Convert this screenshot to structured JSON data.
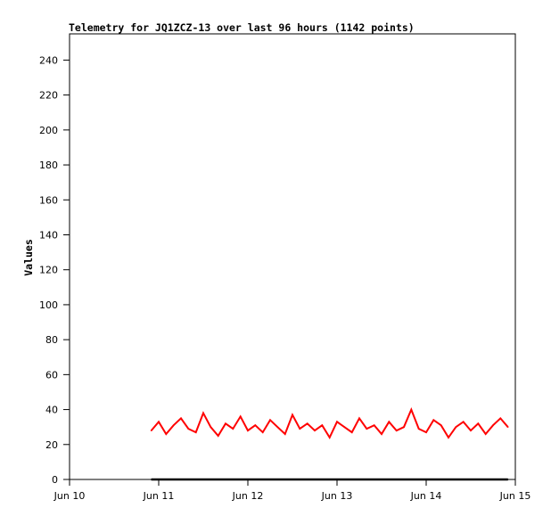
{
  "chart_data": {
    "type": "line",
    "title": "Telemetry for JQ1ZCZ-13 over last 96 hours (1142 points)",
    "xlabel": "",
    "ylabel": "Values",
    "xlim": [
      "Jun 10",
      "Jun 15"
    ],
    "ylim": [
      0,
      255
    ],
    "x_ticks": [
      "Jun 10",
      "Jun 11",
      "Jun 12",
      "Jun 13",
      "Jun 14",
      "Jun 15"
    ],
    "y_ticks": [
      0,
      20,
      40,
      60,
      80,
      100,
      120,
      140,
      160,
      180,
      200,
      220,
      240
    ],
    "grid": false,
    "series": [
      {
        "color": "#ff0000",
        "x": [
          "Jun 10 22:00",
          "Jun 11 00:00",
          "Jun 11 02:00",
          "Jun 11 04:00",
          "Jun 11 06:00",
          "Jun 11 08:00",
          "Jun 11 10:00",
          "Jun 11 12:00",
          "Jun 11 14:00",
          "Jun 11 16:00",
          "Jun 11 18:00",
          "Jun 11 20:00",
          "Jun 11 22:00",
          "Jun 12 00:00",
          "Jun 12 02:00",
          "Jun 12 04:00",
          "Jun 12 06:00",
          "Jun 12 08:00",
          "Jun 12 10:00",
          "Jun 12 12:00",
          "Jun 12 14:00",
          "Jun 12 16:00",
          "Jun 12 18:00",
          "Jun 12 20:00",
          "Jun 12 22:00",
          "Jun 13 00:00",
          "Jun 13 02:00",
          "Jun 13 04:00",
          "Jun 13 06:00",
          "Jun 13 08:00",
          "Jun 13 10:00",
          "Jun 13 12:00",
          "Jun 13 14:00",
          "Jun 13 16:00",
          "Jun 13 18:00",
          "Jun 13 20:00",
          "Jun 13 22:00",
          "Jun 14 00:00",
          "Jun 14 02:00",
          "Jun 14 04:00",
          "Jun 14 06:00",
          "Jun 14 08:00",
          "Jun 14 10:00",
          "Jun 14 12:00",
          "Jun 14 14:00",
          "Jun 14 16:00",
          "Jun 14 18:00",
          "Jun 14 20:00",
          "Jun 14 22:00"
        ],
        "values": [
          28,
          33,
          26,
          31,
          35,
          29,
          27,
          38,
          30,
          25,
          32,
          29,
          36,
          28,
          31,
          27,
          34,
          30,
          26,
          37,
          29,
          32,
          28,
          31,
          24,
          33,
          30,
          27,
          35,
          29,
          31,
          26,
          33,
          28,
          30,
          40,
          29,
          27,
          34,
          31,
          24,
          30,
          33,
          28,
          32,
          26,
          31,
          35,
          30
        ]
      },
      {
        "color": "#000000",
        "x": [
          "Jun 10 22:00",
          "Jun 14 22:00"
        ],
        "values": [
          0,
          0
        ]
      }
    ]
  }
}
